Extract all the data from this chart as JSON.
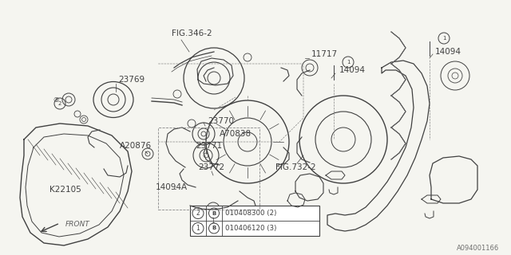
{
  "bg_color": "#f5f5f0",
  "line_color": "#404040",
  "text_color": "#404040",
  "fig_id": "A094001166",
  "legend_items": [
    {
      "num": "1",
      "part": "010406120",
      "qty": "(3)"
    },
    {
      "num": "2",
      "part": "010408300",
      "qty": "(2)"
    }
  ]
}
